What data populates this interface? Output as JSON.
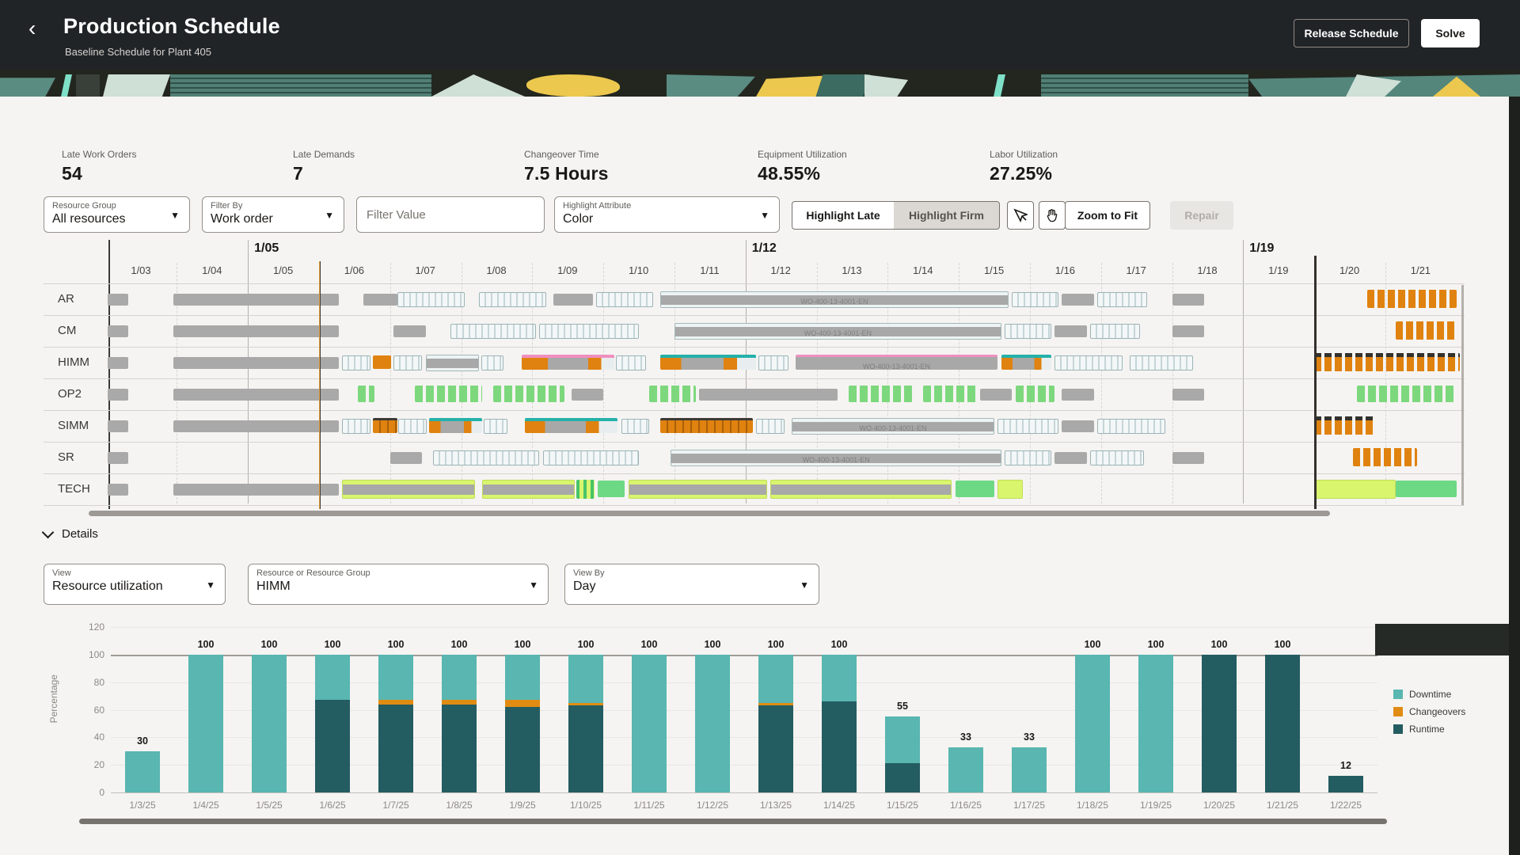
{
  "colors": {
    "accent_teal": "#59b6b0",
    "accent_dark_teal": "#235c61",
    "accent_orange": "#e08c13",
    "gantt_gray": "#a9a9a9",
    "lime": "#d9f56d",
    "green": "#6ed984",
    "pink": "#f08fc0",
    "header_bg": "#212427"
  },
  "icons": {
    "back": "‹",
    "dropdown_arrow": "▼"
  },
  "header": {
    "title": "Production Schedule",
    "subtitle": "Baseline Schedule for Plant 405",
    "release_button": "Release Schedule",
    "solve_button": "Solve"
  },
  "kpis": [
    {
      "label": "Late Work Orders",
      "value": "54"
    },
    {
      "label": "Late Demands",
      "value": "7"
    },
    {
      "label": "Changeover Time",
      "value": "7.5 Hours"
    },
    {
      "label": "Equipment Utilization",
      "value": "48.55%"
    },
    {
      "label": "Labor Utilization",
      "value": "27.25%"
    }
  ],
  "filters": {
    "resource_group": {
      "label": "Resource Group",
      "value": "All resources"
    },
    "filter_by": {
      "label": "Filter By",
      "value": "Work order"
    },
    "filter_value_placeholder": "Filter Value",
    "highlight_attribute": {
      "label": "Highlight Attribute",
      "value": "Color"
    },
    "highlight_late": "Highlight Late",
    "highlight_firm": "Highlight Firm",
    "zoom_to_fit": "Zoom to Fit",
    "repair": "Repair"
  },
  "gantt": {
    "weeks": [
      {
        "label": "1/05",
        "day": 2
      },
      {
        "label": "1/12",
        "day": 9
      },
      {
        "label": "1/19",
        "day": 16
      }
    ],
    "days": [
      "1/03",
      "1/04",
      "1/05",
      "1/06",
      "1/07",
      "1/08",
      "1/09",
      "1/10",
      "1/11",
      "1/12",
      "1/13",
      "1/14",
      "1/15",
      "1/16",
      "1/17",
      "1/18",
      "1/19",
      "1/20",
      "1/21"
    ],
    "now_day": 3,
    "horizon_day": 17,
    "rows": [
      {
        "name": "AR",
        "segments": [
          {
            "t": "gray",
            "s": 0.03,
            "e": 0.32
          },
          {
            "t": "gray",
            "s": 0.95,
            "e": 3.28
          },
          {
            "t": "gray",
            "s": 3.62,
            "e": 4.1
          },
          {
            "t": "jobs",
            "s": 4.1,
            "e": 5.05
          },
          {
            "t": "jobs",
            "s": 5.25,
            "e": 6.2
          },
          {
            "t": "gray",
            "s": 6.3,
            "e": 6.85
          },
          {
            "t": "jobs",
            "s": 6.9,
            "e": 7.7
          },
          {
            "t": "job-gray",
            "s": 7.8,
            "e": 12.7,
            "label": "WO-400-13-4001-EN"
          },
          {
            "t": "jobs",
            "s": 12.75,
            "e": 13.4
          },
          {
            "t": "gray",
            "s": 13.45,
            "e": 13.9
          },
          {
            "t": "jobs",
            "s": 13.95,
            "e": 14.65
          },
          {
            "t": "gray",
            "s": 15.0,
            "e": 15.45
          },
          {
            "t": "orange-cols",
            "s": 17.75,
            "e": 19.0
          }
        ]
      },
      {
        "name": "CM",
        "segments": [
          {
            "t": "gray",
            "s": 0.03,
            "e": 0.32
          },
          {
            "t": "gray",
            "s": 0.95,
            "e": 3.28
          },
          {
            "t": "gray",
            "s": 4.05,
            "e": 4.5
          },
          {
            "t": "jobs",
            "s": 4.85,
            "e": 6.05
          },
          {
            "t": "jobs",
            "s": 6.1,
            "e": 7.5
          },
          {
            "t": "job-gray",
            "s": 8.0,
            "e": 12.6,
            "label": "WO-400-13-4001-EN"
          },
          {
            "t": "jobs",
            "s": 12.65,
            "e": 13.3
          },
          {
            "t": "gray",
            "s": 13.35,
            "e": 13.8
          },
          {
            "t": "jobs",
            "s": 13.85,
            "e": 14.55
          },
          {
            "t": "gray",
            "s": 15.0,
            "e": 15.45
          },
          {
            "t": "orange-cols",
            "s": 18.15,
            "e": 19.0
          }
        ]
      },
      {
        "name": "HIMM",
        "segments": [
          {
            "t": "gray",
            "s": 0.03,
            "e": 0.32
          },
          {
            "t": "gray",
            "s": 0.95,
            "e": 3.28
          },
          {
            "t": "jobs",
            "s": 3.32,
            "e": 3.72
          },
          {
            "t": "orange",
            "s": 3.76,
            "e": 4.02
          },
          {
            "t": "jobs",
            "s": 4.05,
            "e": 4.45
          },
          {
            "t": "job-gray",
            "s": 4.5,
            "e": 5.25
          },
          {
            "t": "jobs",
            "s": 5.28,
            "e": 5.6
          },
          {
            "t": "pink-cap",
            "s": 5.85,
            "e": 7.15
          },
          {
            "t": "jobs",
            "s": 7.18,
            "e": 7.6
          },
          {
            "t": "teal-cap",
            "s": 7.8,
            "e": 9.15
          },
          {
            "t": "jobs",
            "s": 9.18,
            "e": 9.6
          },
          {
            "t": "pink-gray",
            "s": 9.7,
            "e": 12.55,
            "label": "WO-400-13-4001-EN"
          },
          {
            "t": "teal-cap",
            "s": 12.6,
            "e": 13.3
          },
          {
            "t": "jobs",
            "s": 13.35,
            "e": 14.3
          },
          {
            "t": "jobs",
            "s": 14.4,
            "e": 15.3
          },
          {
            "t": "orange-cols-capped",
            "s": 17.0,
            "e": 19.05
          }
        ]
      },
      {
        "name": "OP2",
        "segments": [
          {
            "t": "gray",
            "s": 0.03,
            "e": 0.32
          },
          {
            "t": "gray",
            "s": 0.95,
            "e": 3.28
          },
          {
            "t": "green-cols",
            "s": 3.55,
            "e": 3.78
          },
          {
            "t": "green-cols",
            "s": 4.35,
            "e": 5.3
          },
          {
            "t": "green-cols",
            "s": 5.45,
            "e": 6.45
          },
          {
            "t": "gray",
            "s": 6.55,
            "e": 7.0
          },
          {
            "t": "green-cols",
            "s": 7.65,
            "e": 8.3
          },
          {
            "t": "gray",
            "s": 8.35,
            "e": 10.3
          },
          {
            "t": "green-cols",
            "s": 10.45,
            "e": 11.35
          },
          {
            "t": "green-cols",
            "s": 11.5,
            "e": 12.25
          },
          {
            "t": "gray",
            "s": 12.3,
            "e": 12.75
          },
          {
            "t": "green-cols",
            "s": 12.8,
            "e": 13.35
          },
          {
            "t": "gray",
            "s": 13.45,
            "e": 13.9
          },
          {
            "t": "gray",
            "s": 15.0,
            "e": 15.45
          },
          {
            "t": "green-cols",
            "s": 17.6,
            "e": 19.0
          }
        ]
      },
      {
        "name": "SIMM",
        "segments": [
          {
            "t": "gray",
            "s": 0.03,
            "e": 0.32
          },
          {
            "t": "gray",
            "s": 0.95,
            "e": 3.28
          },
          {
            "t": "jobs",
            "s": 3.32,
            "e": 3.72
          },
          {
            "t": "orange-dark",
            "s": 3.76,
            "e": 4.1
          },
          {
            "t": "jobs",
            "s": 4.12,
            "e": 4.52
          },
          {
            "t": "teal-cap",
            "s": 4.55,
            "e": 5.3
          },
          {
            "t": "jobs",
            "s": 5.32,
            "e": 5.65
          },
          {
            "t": "teal-cap",
            "s": 5.9,
            "e": 7.2
          },
          {
            "t": "jobs",
            "s": 7.25,
            "e": 7.65
          },
          {
            "t": "orange-dark",
            "s": 7.8,
            "e": 9.1
          },
          {
            "t": "jobs",
            "s": 9.15,
            "e": 9.55
          },
          {
            "t": "job-gray",
            "s": 9.65,
            "e": 12.5,
            "label": "WO-400-13-4001-EN"
          },
          {
            "t": "jobs",
            "s": 12.55,
            "e": 13.4
          },
          {
            "t": "gray",
            "s": 13.45,
            "e": 13.9
          },
          {
            "t": "jobs",
            "s": 13.95,
            "e": 14.9
          },
          {
            "t": "orange-cols-capped",
            "s": 17.0,
            "e": 17.85
          }
        ]
      },
      {
        "name": "SR",
        "segments": [
          {
            "t": "gray",
            "s": 0.03,
            "e": 0.32
          },
          {
            "t": "gray",
            "s": 4.0,
            "e": 4.45
          },
          {
            "t": "jobs",
            "s": 4.6,
            "e": 6.1
          },
          {
            "t": "jobs",
            "s": 6.15,
            "e": 7.5
          },
          {
            "t": "job-gray",
            "s": 7.95,
            "e": 12.6,
            "label": "WO-400-13-4001-EN"
          },
          {
            "t": "jobs",
            "s": 12.65,
            "e": 13.3
          },
          {
            "t": "gray",
            "s": 13.35,
            "e": 13.8
          },
          {
            "t": "jobs",
            "s": 13.85,
            "e": 14.6
          },
          {
            "t": "gray",
            "s": 15.0,
            "e": 15.45
          },
          {
            "t": "orange-cols",
            "s": 17.55,
            "e": 18.45
          }
        ]
      },
      {
        "name": "TECH",
        "segments": [
          {
            "t": "gray",
            "s": 0.03,
            "e": 0.32
          },
          {
            "t": "gray",
            "s": 0.95,
            "e": 3.28
          },
          {
            "t": "lime-gray",
            "s": 3.32,
            "e": 5.2
          },
          {
            "t": "lime-gray",
            "s": 5.3,
            "e": 6.6
          },
          {
            "t": "green-stripes",
            "s": 6.62,
            "e": 6.88
          },
          {
            "t": "green",
            "s": 6.92,
            "e": 7.3
          },
          {
            "t": "lime-gray",
            "s": 7.35,
            "e": 9.3
          },
          {
            "t": "lime-gray",
            "s": 9.35,
            "e": 11.9
          },
          {
            "t": "green",
            "s": 11.95,
            "e": 12.5
          },
          {
            "t": "lime",
            "s": 12.55,
            "e": 12.9
          },
          {
            "t": "lime",
            "s": 17.0,
            "e": 18.15
          },
          {
            "t": "green",
            "s": 18.15,
            "e": 19.0
          }
        ]
      }
    ]
  },
  "details": {
    "title": "Details",
    "view": {
      "label": "View",
      "value": "Resource utilization"
    },
    "resource": {
      "label": "Resource or Resource Group",
      "value": "HIMM"
    },
    "view_by": {
      "label": "View By",
      "value": "Day"
    }
  },
  "chart_data": {
    "type": "bar",
    "stacked": true,
    "ylabel": "Percentage",
    "ylim": [
      0,
      120
    ],
    "yticks": [
      0,
      20,
      40,
      60,
      80,
      100,
      120
    ],
    "grid": true,
    "legend_position": "right",
    "categories": [
      "1/3/25",
      "1/4/25",
      "1/5/25",
      "1/6/25",
      "1/7/25",
      "1/8/25",
      "1/9/25",
      "1/10/25",
      "1/11/25",
      "1/12/25",
      "1/13/25",
      "1/14/25",
      "1/15/25",
      "1/16/25",
      "1/17/25",
      "1/18/25",
      "1/19/25",
      "1/20/25",
      "1/21/25",
      "1/22/25"
    ],
    "series": [
      {
        "name": "Runtime",
        "color": "#235c61",
        "values": [
          0,
          0,
          0,
          67,
          64,
          64,
          62,
          63,
          0,
          0,
          63,
          66,
          21,
          0,
          0,
          0,
          0,
          100,
          100,
          12
        ]
      },
      {
        "name": "Changeovers",
        "color": "#e08c13",
        "values": [
          0,
          0,
          0,
          0,
          3,
          3,
          5,
          2,
          0,
          0,
          2,
          0,
          0,
          0,
          0,
          0,
          0,
          0,
          0,
          0
        ]
      },
      {
        "name": "Downtime",
        "color": "#59b6b0",
        "values": [
          30,
          100,
          100,
          33,
          33,
          33,
          33,
          35,
          100,
          100,
          35,
          34,
          34,
          33,
          33,
          100,
          100,
          0,
          0,
          0
        ]
      }
    ],
    "totals": [
      30,
      100,
      100,
      100,
      100,
      100,
      100,
      100,
      100,
      100,
      100,
      100,
      55,
      33,
      33,
      100,
      100,
      100,
      100,
      12
    ],
    "legend": [
      {
        "label": "Downtime",
        "color": "#59b6b0"
      },
      {
        "label": "Changeovers",
        "color": "#e08c13"
      },
      {
        "label": "Runtime",
        "color": "#235c61"
      }
    ]
  }
}
